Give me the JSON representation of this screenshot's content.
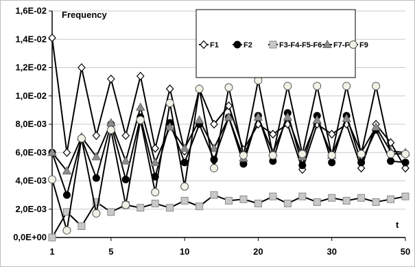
{
  "chart_data": {
    "type": "line",
    "ylabel": "Frequency",
    "xlabel": "t",
    "ylim": [
      0,
      0.016
    ],
    "y_ticks": [
      "0,0E+00",
      "2,0E-03",
      "4,0E-03",
      "6,0E-03",
      "8,0E-03",
      "1,0E-02",
      "1,2E-02",
      "1,4E-02",
      "1,6E-02"
    ],
    "y_tick_values": [
      0,
      0.002,
      0.004,
      0.006,
      0.008,
      0.01,
      0.012,
      0.014,
      0.016
    ],
    "x_ticks": [
      "1",
      "5",
      "10",
      "20",
      "30",
      "50"
    ],
    "x_tick_positions": [
      1,
      5,
      10,
      15,
      20,
      25
    ],
    "x": [
      1,
      2,
      3,
      4,
      5,
      6,
      7,
      8,
      9,
      10,
      11,
      12,
      13,
      14,
      15,
      16,
      17,
      18,
      19,
      20,
      21,
      22,
      23,
      24,
      25
    ],
    "grid": "horizontal",
    "legend_position": "top-right",
    "series": [
      {
        "name": "F1",
        "marker": "diamond-open",
        "color": "#000000",
        "values": [
          0.0141,
          0.006,
          0.012,
          0.0072,
          0.0112,
          0.0072,
          0.0114,
          0.0063,
          0.0105,
          0.0061,
          0.0105,
          0.008,
          0.0093,
          0.0062,
          0.008,
          0.0073,
          0.008,
          0.0048,
          0.008,
          0.0073,
          0.008,
          0.0049,
          0.008,
          0.0067,
          0.0049
        ]
      },
      {
        "name": "F2",
        "marker": "circle-filled",
        "color": "#000000",
        "values": [
          0.006,
          0.003,
          0.007,
          0.0042,
          0.008,
          0.0041,
          0.0085,
          0.0043,
          0.0081,
          0.0053,
          0.008,
          0.0055,
          0.0085,
          0.0052,
          0.0086,
          0.0054,
          0.0088,
          0.0051,
          0.0086,
          0.0053,
          0.0086,
          0.0053,
          0.0076,
          0.0054,
          0.0053
        ]
      },
      {
        "name": "F3-F4-F5-F6",
        "marker": "square",
        "color": "#000000",
        "values": [
          0.0,
          0.0018,
          0.0008,
          0.0025,
          0.0018,
          0.0023,
          0.0021,
          0.0024,
          0.0021,
          0.0026,
          0.0022,
          0.003,
          0.0026,
          0.0027,
          0.0024,
          0.0029,
          0.0024,
          0.0029,
          0.0025,
          0.0028,
          0.0026,
          0.0028,
          0.0025,
          0.0027,
          0.0029
        ]
      },
      {
        "name": "F7-F8",
        "marker": "triangle",
        "color": "#000000",
        "values": [
          0.006,
          0.0047,
          0.0071,
          0.0057,
          0.0081,
          0.0054,
          0.0092,
          0.0053,
          0.0078,
          0.0063,
          0.0083,
          0.0063,
          0.0085,
          0.0056,
          0.0085,
          0.006,
          0.0085,
          0.0057,
          0.0083,
          0.0058,
          0.0084,
          0.006,
          0.0078,
          0.0061,
          0.006
        ]
      },
      {
        "name": "F9",
        "marker": "circle-open",
        "color": "#000000",
        "values": [
          0.0041,
          0.0005,
          0.007,
          0.0017,
          0.0076,
          0.0023,
          0.0083,
          0.0032,
          0.0095,
          0.0036,
          0.0105,
          0.0049,
          0.0106,
          0.0058,
          0.0111,
          0.0058,
          0.0107,
          0.0059,
          0.0107,
          0.0058,
          0.0107,
          0.0059,
          0.0107,
          0.0059,
          0.0059
        ]
      }
    ]
  }
}
